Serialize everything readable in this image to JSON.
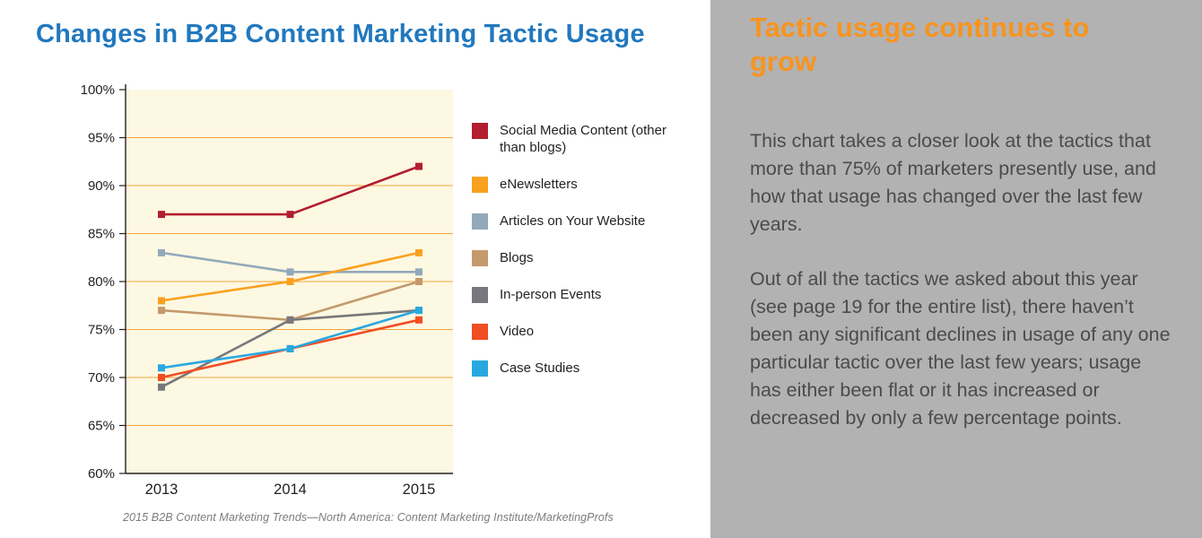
{
  "page": {
    "title": "Changes in B2B Content Marketing Tactic Usage",
    "title_color": "#2178BE",
    "source_caption": "2015 B2B Content Marketing Trends—North America: Content Marketing Institute/MarketingProfs"
  },
  "panel": {
    "bg_color": "#B2B2B3",
    "heading": "Tactic usage continues to grow",
    "heading_color": "#F7941E",
    "paragraphs": [
      "This chart takes a closer look at the tactics that more than 75% of marketers presently use, and how that usage has changed over the last few years.",
      "Out of all the tactics we asked about this year (see page 19 for the entire list), there haven’t been any significant declines in usage of any one particular tactic over the last few years; usage has either been flat or it has increased or decreased by only a few percentage points."
    ]
  },
  "chart_data": {
    "type": "line",
    "title": "Changes in B2B Content Marketing Tactic Usage",
    "x_categories": [
      "2013",
      "2014",
      "2015"
    ],
    "ylim": [
      60,
      100
    ],
    "ytick_step": 5,
    "ytick_labels": [
      "60%",
      "65%",
      "70%",
      "75%",
      "80%",
      "85%",
      "90%",
      "95%",
      "100%"
    ],
    "grid": true,
    "legend_position": "right",
    "plot_bg_color": "#FDF8E2",
    "grid_color": "#F2A33C",
    "axis_color": "#231F20",
    "series": [
      {
        "name": "Social Media Content (other than blogs)",
        "color": "#B21E2F",
        "values": [
          87,
          87,
          92
        ]
      },
      {
        "name": "eNewsletters",
        "color": "#F9A11F",
        "values": [
          78,
          80,
          83
        ]
      },
      {
        "name": "Articles on Your Website",
        "color": "#92A9BA",
        "values": [
          83,
          81,
          81
        ]
      },
      {
        "name": "Blogs",
        "color": "#C49A6C",
        "values": [
          77,
          76,
          80
        ]
      },
      {
        "name": "In-person Events",
        "color": "#77787B",
        "values": [
          69,
          76,
          77
        ]
      },
      {
        "name": "Video",
        "color": "#F04E23",
        "values": [
          70,
          73,
          76
        ]
      },
      {
        "name": "Case Studies",
        "color": "#29A8E0",
        "values": [
          71,
          73,
          77
        ]
      }
    ]
  }
}
